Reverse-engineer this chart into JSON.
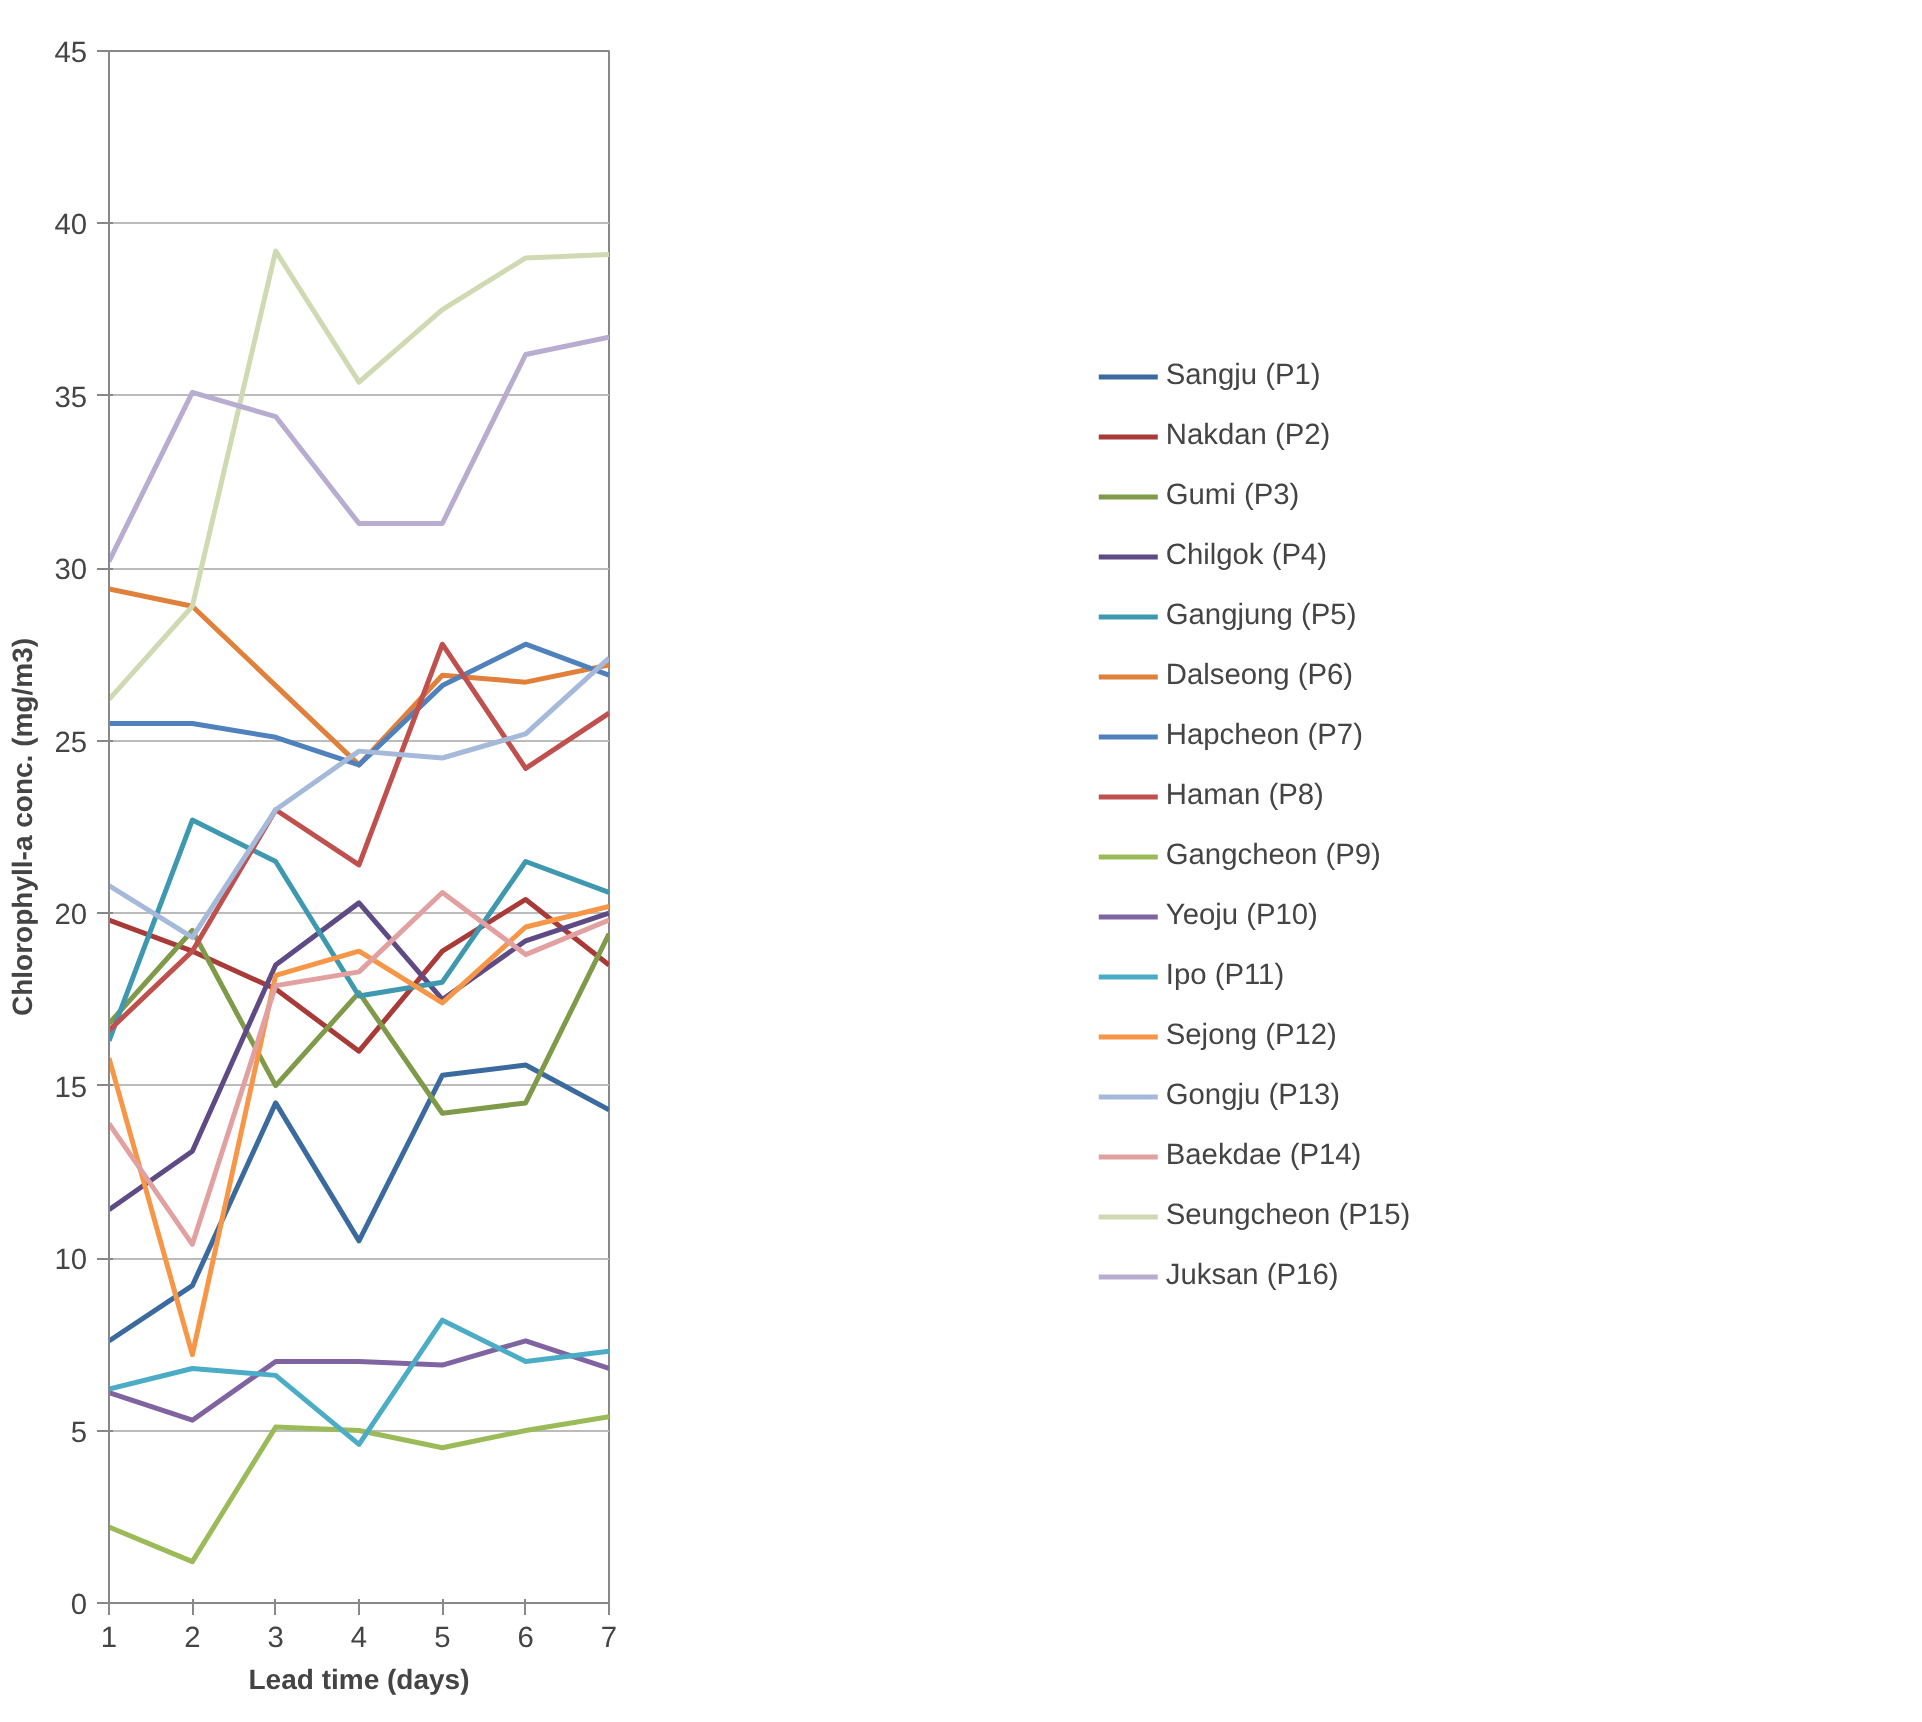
{
  "chart_data": {
    "type": "line",
    "xlabel": "Lead time (days)",
    "ylabel": "Chlorophyll-a conc. (mg/m3)",
    "x": [
      1,
      2,
      3,
      4,
      5,
      6,
      7
    ],
    "xlim": [
      1,
      7
    ],
    "xticks": [
      1,
      2,
      3,
      4,
      5,
      6,
      7
    ],
    "ylim": [
      0,
      45
    ],
    "yticks": [
      0,
      5,
      10,
      15,
      20,
      25,
      30,
      35,
      40,
      45
    ],
    "grid": "y",
    "legend": "right",
    "marker": "none",
    "line_style": "solid",
    "series": [
      {
        "name": "Sangju (P1)",
        "color": "#3a6a9e",
        "values": [
          7.6,
          9.2,
          14.5,
          10.5,
          15.3,
          15.6,
          14.3
        ]
      },
      {
        "name": "Nakdan (P2)",
        "color": "#a83a38",
        "values": [
          19.8,
          18.9,
          17.8,
          16.0,
          18.9,
          20.4,
          18.5
        ]
      },
      {
        "name": "Gumi (P3)",
        "color": "#7f9a48",
        "values": [
          16.8,
          19.5,
          15.0,
          17.7,
          14.2,
          14.5,
          19.4
        ]
      },
      {
        "name": "Chilgok (P4)",
        "color": "#5e4a85",
        "values": [
          11.4,
          13.1,
          18.5,
          20.3,
          17.5,
          19.2,
          20.0
        ]
      },
      {
        "name": "Gangjung (P5)",
        "color": "#3d98b0",
        "values": [
          16.3,
          22.7,
          21.5,
          17.6,
          18.0,
          21.5,
          20.6
        ]
      },
      {
        "name": "Dalseong (P6)",
        "color": "#e0803a",
        "values": [
          29.4,
          28.9,
          26.6,
          24.3,
          26.9,
          26.7,
          27.2
        ]
      },
      {
        "name": "Hapcheon (P7)",
        "color": "#4f81bd",
        "values": [
          25.5,
          25.5,
          25.1,
          24.3,
          26.6,
          27.8,
          26.9
        ]
      },
      {
        "name": "Haman (P8)",
        "color": "#c0504d",
        "values": [
          16.6,
          18.9,
          23.0,
          21.4,
          27.8,
          24.2,
          25.8
        ]
      },
      {
        "name": "Gangcheon (P9)",
        "color": "#9bbb59",
        "values": [
          2.2,
          1.2,
          5.1,
          5.0,
          4.5,
          5.0,
          5.4
        ]
      },
      {
        "name": "Yeoju (P10)",
        "color": "#8064a2",
        "values": [
          6.1,
          5.3,
          7.0,
          7.0,
          6.9,
          7.6,
          6.8
        ]
      },
      {
        "name": "Ipo (P11)",
        "color": "#4bacc6",
        "values": [
          6.2,
          6.8,
          6.6,
          4.6,
          8.2,
          7.0,
          7.3
        ]
      },
      {
        "name": "Sejong (P12)",
        "color": "#f79646",
        "values": [
          15.8,
          7.2,
          18.2,
          18.9,
          17.4,
          19.6,
          20.2
        ]
      },
      {
        "name": "Gongju (P13)",
        "color": "#a5b9da",
        "values": [
          20.8,
          19.3,
          23.0,
          24.7,
          24.5,
          25.2,
          27.4
        ]
      },
      {
        "name": "Baekdae (P14)",
        "color": "#e2a0a0",
        "values": [
          13.9,
          10.4,
          17.9,
          18.3,
          20.6,
          18.8,
          19.8
        ]
      },
      {
        "name": "Seungcheon (P15)",
        "color": "#cfd9b2",
        "values": [
          26.2,
          28.9,
          39.2,
          35.4,
          37.5,
          39.0,
          39.1
        ]
      },
      {
        "name": "Juksan (P16)",
        "color": "#b8acd0",
        "values": [
          30.2,
          35.1,
          34.4,
          31.3,
          31.3,
          36.2,
          36.7
        ]
      }
    ]
  }
}
